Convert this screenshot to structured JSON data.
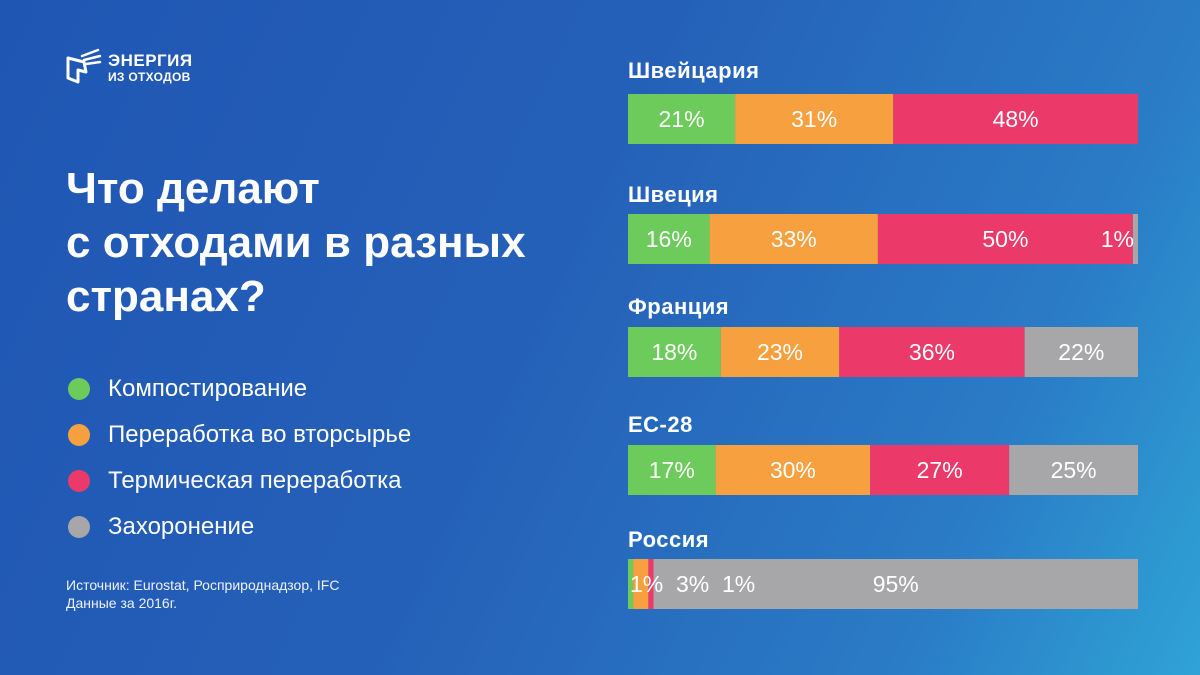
{
  "logo": {
    "line1": "ЭНЕРГИЯ",
    "line2": "ИЗ ОТХОДОВ"
  },
  "title": {
    "line1": "Что делают",
    "line2": "с отходами в разных",
    "line3": "странах?"
  },
  "source": {
    "line1": "Источник: Eurostat, Росприроднадзор, IFC",
    "line2": "Данные за 2016г."
  },
  "colors": {
    "green": "#6ccb5a",
    "orange": "#f7a03f",
    "pink": "#eb3a6a",
    "gray": "#a7a7aa"
  },
  "chart_data": {
    "type": "bar",
    "orientation": "horizontal",
    "stacked": true,
    "title": "Что делают с отходами в разных странах?",
    "unit": "%",
    "categories": [
      "Швейцария",
      "Швеция",
      "Франция",
      "ЕС-28",
      "Россия"
    ],
    "series": [
      {
        "name": "Компостирование",
        "color": "#6ccb5a",
        "values": [
          21,
          16,
          18,
          17,
          1
        ],
        "labels": [
          "21%",
          "16%",
          "18%",
          "17%",
          "1%"
        ]
      },
      {
        "name": "Переработка во вторсырье",
        "color": "#f7a03f",
        "values": [
          31,
          33,
          23,
          30,
          3
        ],
        "labels": [
          "31%",
          "33%",
          "23%",
          "30%",
          "3%"
        ]
      },
      {
        "name": "Термическая переработка",
        "color": "#eb3a6a",
        "values": [
          48,
          50,
          36,
          27,
          1
        ],
        "labels": [
          "48%",
          "50%",
          "36%",
          "27%",
          "1%"
        ]
      },
      {
        "name": "Захоронение",
        "color": "#a7a7aa",
        "values": [
          0,
          1,
          22,
          25,
          95
        ],
        "labels": [
          "",
          "1%",
          "22%",
          "25%",
          "95%"
        ]
      }
    ],
    "legend_position": "left"
  }
}
